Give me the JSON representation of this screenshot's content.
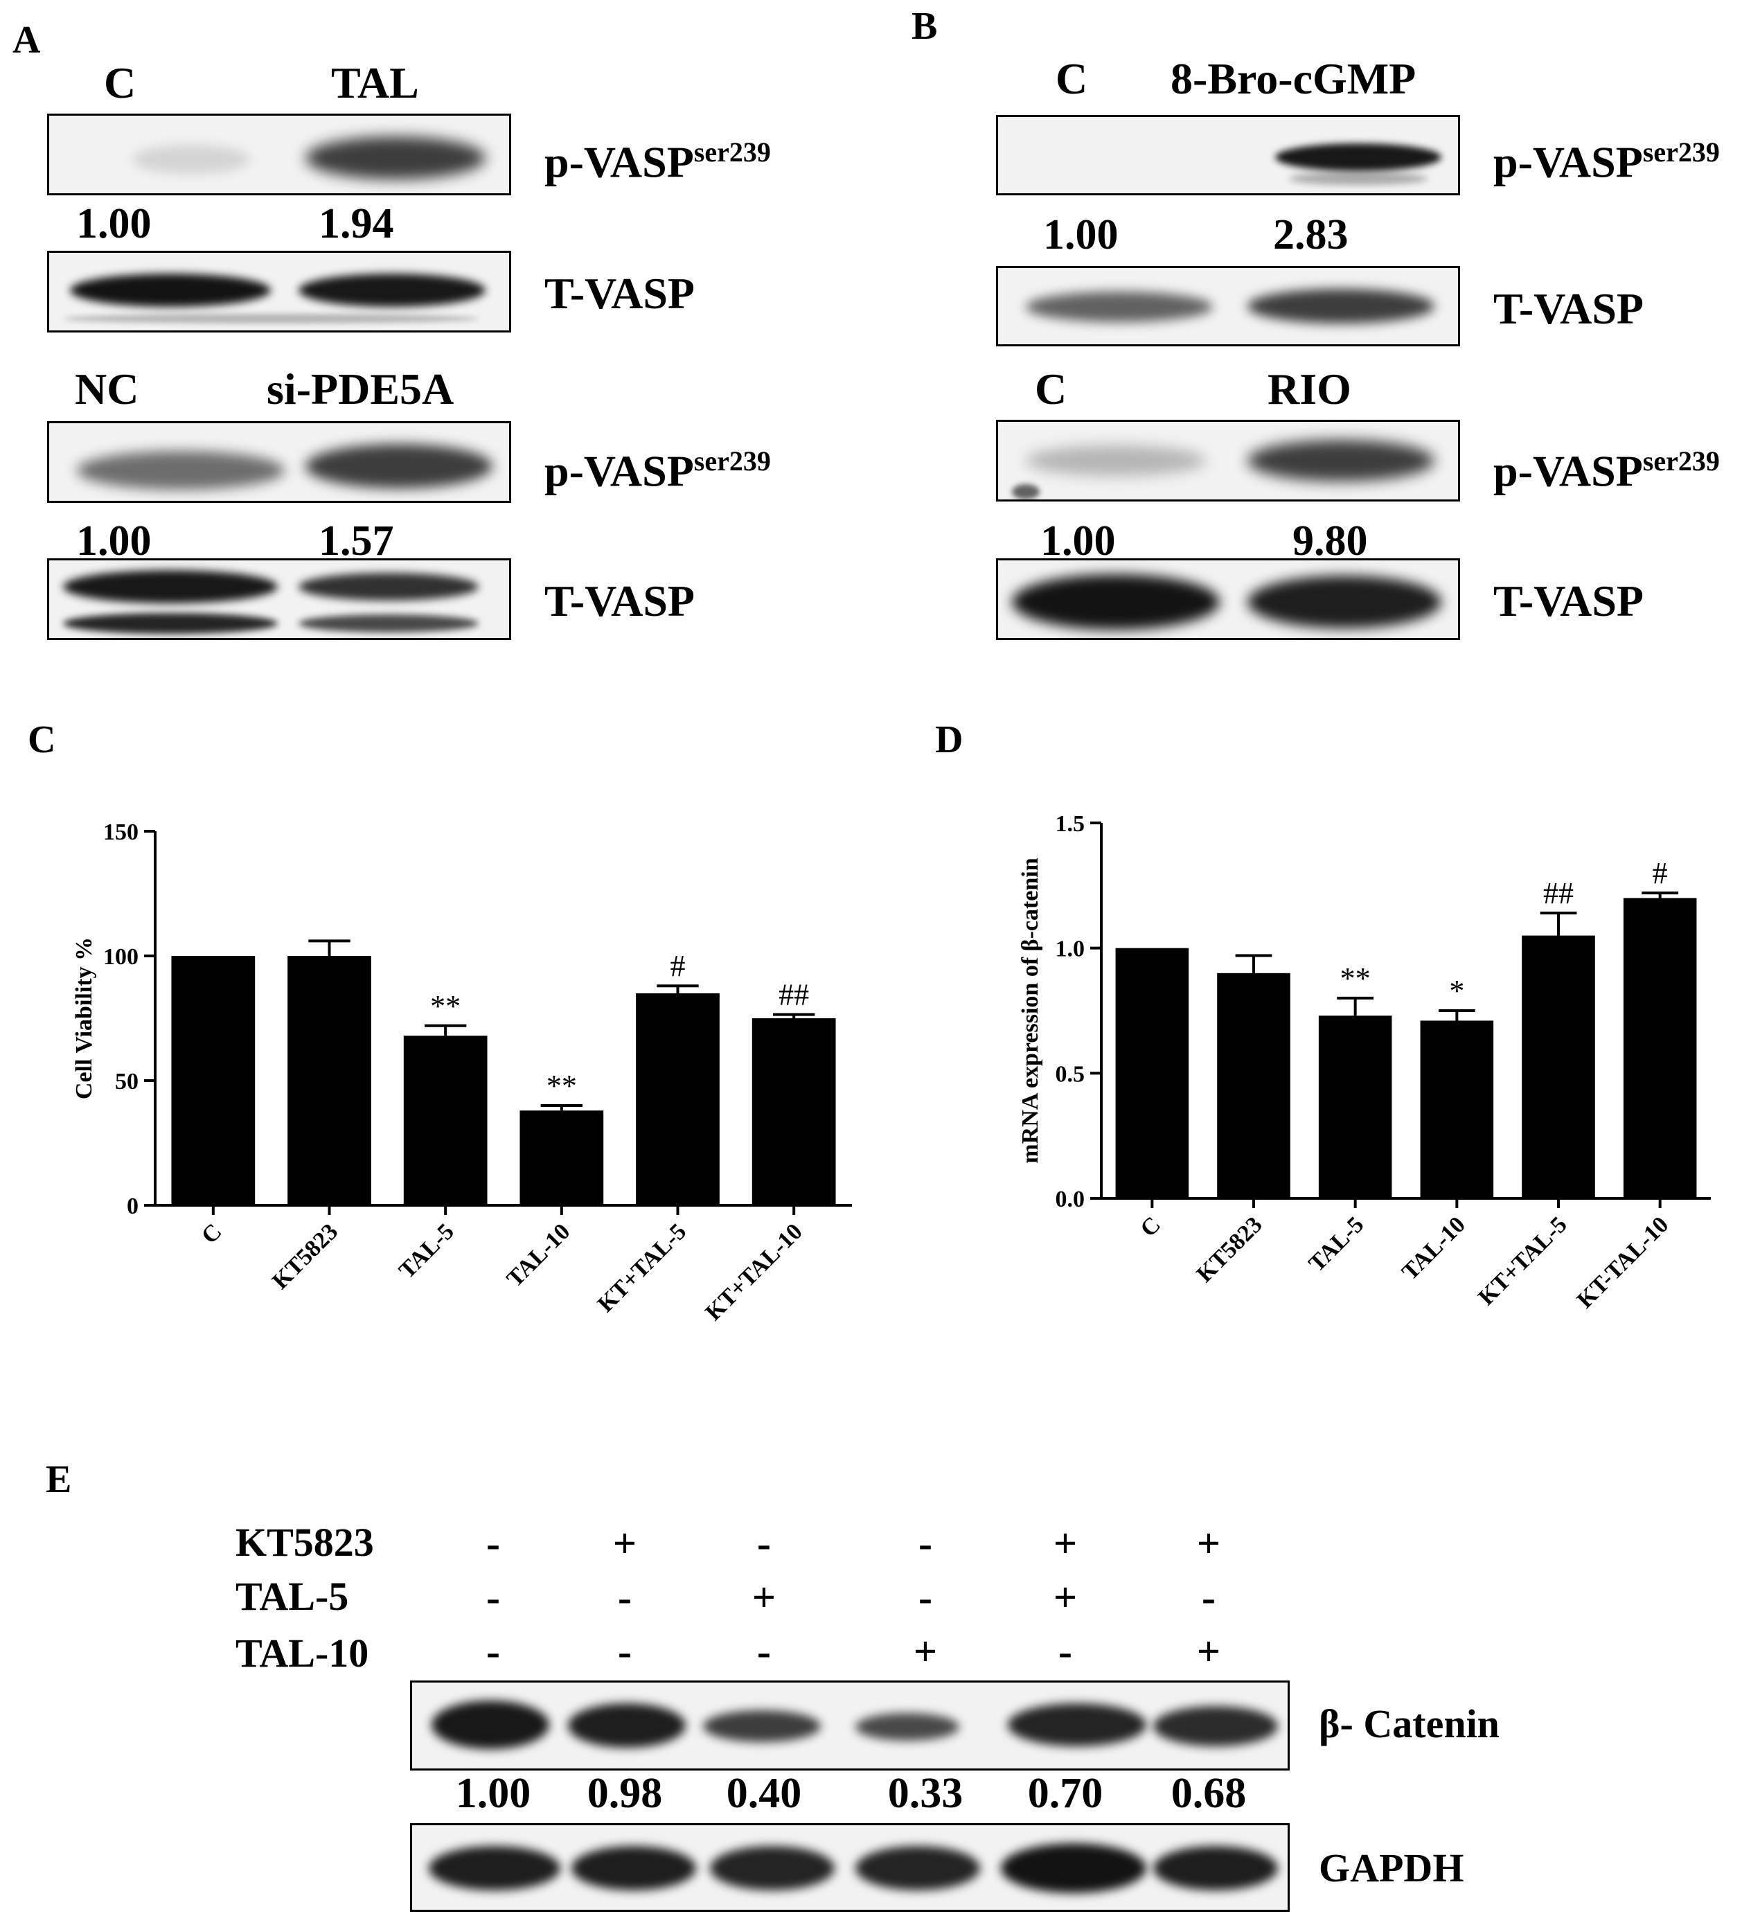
{
  "panels": {
    "A": {
      "letter": "A",
      "top": {
        "lanes": [
          "C",
          "TAL"
        ],
        "quant": [
          "1.00",
          "1.94"
        ],
        "rows": [
          "p-VASP",
          "T-VASP"
        ],
        "sup": "ser239"
      },
      "bottom": {
        "lanes": [
          "NC",
          "si-PDE5A"
        ],
        "quant": [
          "1.00",
          "1.57"
        ],
        "rows": [
          "p-VASP",
          "T-VASP"
        ],
        "sup": "ser239"
      }
    },
    "B": {
      "letter": "B",
      "top": {
        "lanes": [
          "C",
          "8-Bro-cGMP"
        ],
        "quant": [
          "1.00",
          "2.83"
        ],
        "rows": [
          "p-VASP",
          "T-VASP"
        ],
        "sup": "ser239"
      },
      "bottom": {
        "lanes": [
          "C",
          "RIO"
        ],
        "quant": [
          "1.00",
          "9.80"
        ],
        "rows": [
          "p-VASP",
          "T-VASP"
        ],
        "sup": "ser239"
      }
    },
    "C": {
      "letter": "C"
    },
    "D": {
      "letter": "D"
    },
    "E": {
      "letter": "E",
      "treatments": [
        {
          "name": "KT5823",
          "signs": [
            "-",
            "+",
            "-",
            "-",
            "+",
            "+"
          ]
        },
        {
          "name": "TAL-5",
          "signs": [
            "-",
            "-",
            "+",
            "-",
            "+",
            "-"
          ]
        },
        {
          "name": "TAL-10",
          "signs": [
            "-",
            "-",
            "-",
            "+",
            "-",
            "+"
          ]
        }
      ],
      "rows": [
        "β- Catenin",
        "GAPDH"
      ],
      "quant": [
        "1.00",
        "0.98",
        "0.40",
        "0.33",
        "0.70",
        "0.68"
      ]
    }
  },
  "chart_data": [
    {
      "type": "bar",
      "title": "",
      "xlabel": "",
      "ylabel": "Cell Viability %",
      "categories": [
        "C",
        "KT5823",
        "TAL-5",
        "TAL-10",
        "KT+TAL-5",
        "KT+TAL-10"
      ],
      "values": [
        100,
        100,
        68,
        38,
        85,
        75
      ],
      "errors": [
        0,
        6,
        4,
        2,
        3,
        1.5
      ],
      "annotations": [
        "",
        "",
        "**",
        "**",
        "#",
        "##"
      ],
      "ylim": [
        0,
        150
      ],
      "yticks": [
        "0",
        "50",
        "100",
        "150"
      ],
      "bar_color": "#000000"
    },
    {
      "type": "bar",
      "title": "",
      "xlabel": "",
      "ylabel": "mRNA expression of β-catenin",
      "categories": [
        "C",
        "KT5823",
        "TAL-5",
        "TAL-10",
        "KT+TAL-5",
        "KT-TAL-10"
      ],
      "values": [
        1.0,
        0.9,
        0.73,
        0.71,
        1.05,
        1.2
      ],
      "errors": [
        0,
        0.07,
        0.07,
        0.04,
        0.09,
        0.02
      ],
      "annotations": [
        "",
        "",
        "**",
        "*",
        "##",
        "#"
      ],
      "ylim": [
        0,
        1.5
      ],
      "yticks": [
        "0.0",
        "0.5",
        "1.0",
        "1.5"
      ],
      "bar_color": "#000000"
    }
  ]
}
